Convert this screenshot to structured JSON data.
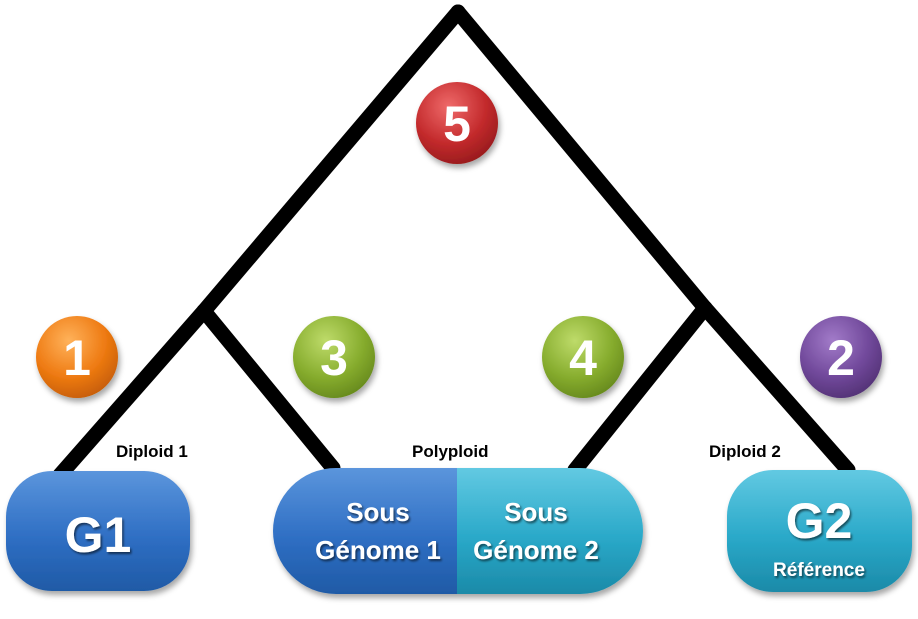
{
  "tree": {
    "node_numbers": {
      "n1": "1",
      "n2": "2",
      "n3": "3",
      "n4": "4",
      "n5": "5"
    },
    "colors": {
      "n1": "#ee7a12",
      "n2": "#70489a",
      "n3": "#87ad2e",
      "n4": "#87ad2e",
      "n5": "#c32a2c",
      "g1": "#2f6fc4",
      "sub1": "#2f6fc4",
      "sub2": "#2aa9c9",
      "g2": "#2aa9c9",
      "branch": "#000000"
    }
  },
  "labels": {
    "diploid1": "Diploid 1",
    "polyploid": "Polyploid",
    "diploid2": "Diploid 2"
  },
  "genomes": {
    "g1": {
      "title": "G1"
    },
    "sub1": {
      "line1": "Sous",
      "line2": "Génome 1"
    },
    "sub2": {
      "line1": "Sous",
      "line2": "Génome 2"
    },
    "g2": {
      "title": "G2",
      "subtitle": "Référence"
    }
  }
}
